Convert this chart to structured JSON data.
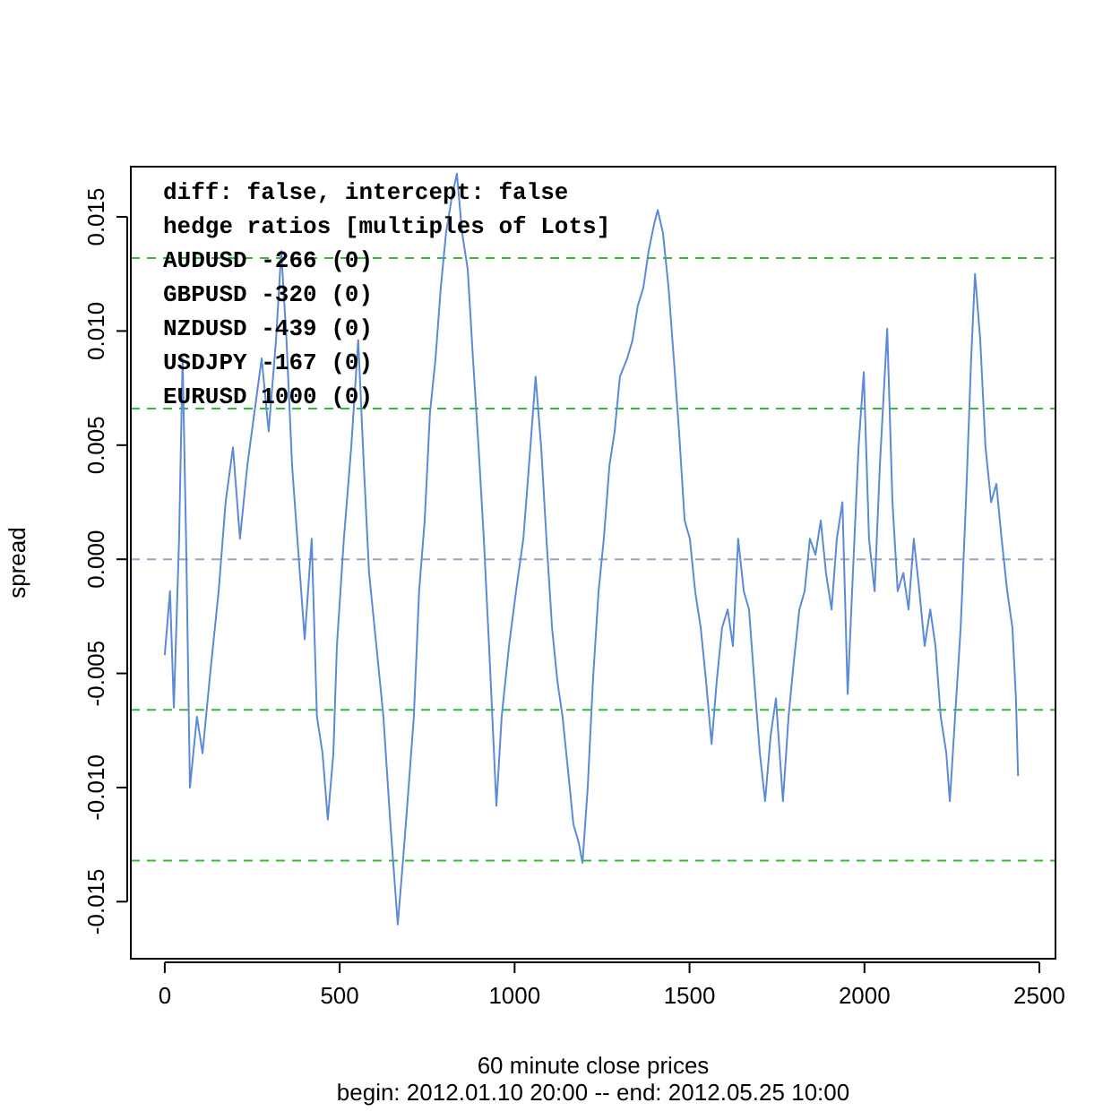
{
  "chart_data": {
    "type": "line",
    "xlabel": "60 minute close prices\nbegin: 2012.01.10 20:00 -- end: 2012.05.25 10:00",
    "ylabel": "spread",
    "annotations": [
      "diff: false, intercept: false",
      "hedge ratios [multiples of Lots]",
      "AUDUSD -266 (0)",
      "GBPUSD -320 (0)",
      "NZDUSD -439 (0)",
      "USDJPY -167 (0)",
      "EURUSD 1000 (0)"
    ],
    "xlim": [
      -97,
      2546
    ],
    "xticks": [
      0,
      500,
      1000,
      1500,
      2000,
      2500
    ],
    "ylim": [
      -0.0175,
      0.0172
    ],
    "yticks": [
      {
        "value": -0.015,
        "label": "-0.015"
      },
      {
        "value": -0.01,
        "label": "-0.010"
      },
      {
        "value": -0.005,
        "label": "-0.005"
      },
      {
        "value": 0,
        "label": "0.000"
      },
      {
        "value": 0.005,
        "label": "0.005"
      },
      {
        "value": 0.01,
        "label": "0.010"
      },
      {
        "value": 0.015,
        "label": "0.015"
      }
    ],
    "grid": false,
    "ref_lines": [
      {
        "axis": "y",
        "value": 0.0132,
        "color": "#33bb33",
        "line_style": "dashed"
      },
      {
        "axis": "y",
        "value": 0.0066,
        "color": "#33bb33",
        "line_style": "dashed"
      },
      {
        "axis": "y",
        "value": 0,
        "color": "#8fa8cc",
        "line_style": "dashed"
      },
      {
        "axis": "y",
        "value": -0.0066,
        "color": "#33bb33",
        "line_style": "dashed"
      },
      {
        "axis": "y",
        "value": -0.0132,
        "color": "#33bb33",
        "line_style": "dashed"
      }
    ],
    "series": [
      {
        "color": "#5b8bd6",
        "x": [
          0,
          15,
          26,
          41,
          51,
          61,
          72,
          92,
          108,
          128,
          154,
          174,
          195,
          215,
          236,
          256,
          277,
          297,
          318,
          333,
          348,
          364,
          379,
          400,
          420,
          435,
          451,
          466,
          482,
          492,
          512,
          533,
          553,
          569,
          584,
          605,
          625,
          645,
          666,
          681,
          697,
          712,
          727,
          743,
          758,
          774,
          789,
          804,
          820,
          835,
          850,
          866,
          881,
          897,
          912,
          927,
          948,
          963,
          984,
          1004,
          1025,
          1045,
          1060,
          1076,
          1091,
          1107,
          1122,
          1137,
          1153,
          1168,
          1183,
          1194,
          1209,
          1224,
          1240,
          1255,
          1271,
          1286,
          1301,
          1322,
          1337,
          1352,
          1368,
          1383,
          1399,
          1409,
          1424,
          1440,
          1455,
          1470,
          1486,
          1501,
          1516,
          1532,
          1547,
          1563,
          1578,
          1593,
          1609,
          1624,
          1639,
          1655,
          1670,
          1685,
          1701,
          1716,
          1732,
          1747,
          1767,
          1783,
          1798,
          1814,
          1829,
          1844,
          1860,
          1875,
          1890,
          1906,
          1921,
          1937,
          1952,
          1967,
          1983,
          1998,
          2013,
          2029,
          2044,
          2065,
          2080,
          2095,
          2111,
          2126,
          2141,
          2157,
          2172,
          2188,
          2203,
          2218,
          2234,
          2244,
          2259,
          2275,
          2290,
          2305,
          2316,
          2331,
          2346,
          2362,
          2377,
          2392,
          2408,
          2423,
          2433,
          2439
        ],
        "values": [
          -0.0042,
          -0.0014,
          -0.0065,
          0.0009,
          0.0088,
          0.0009,
          -0.01,
          -0.0069,
          -0.0085,
          -0.0053,
          -0.0014,
          0.0025,
          0.0049,
          0.0009,
          0.0041,
          0.0064,
          0.0088,
          0.0056,
          0.0096,
          0.0135,
          0.0096,
          0.0041,
          0.0009,
          -0.0035,
          0.0009,
          -0.0069,
          -0.0085,
          -0.0114,
          -0.0085,
          -0.0038,
          0.0009,
          0.0049,
          0.0096,
          0.0041,
          -0.0006,
          -0.0038,
          -0.0069,
          -0.0116,
          -0.016,
          -0.0132,
          -0.01,
          -0.0069,
          -0.0014,
          0.0017,
          0.0064,
          0.0088,
          0.0119,
          0.0143,
          0.0158,
          0.0169,
          0.0143,
          0.0127,
          0.0088,
          0.0049,
          0.0009,
          -0.0038,
          -0.0108,
          -0.0069,
          -0.0038,
          -0.0014,
          0.0009,
          0.0049,
          0.008,
          0.0049,
          0.0009,
          -0.003,
          -0.0053,
          -0.0069,
          -0.0093,
          -0.0116,
          -0.0124,
          -0.0133,
          -0.01,
          -0.0053,
          -0.0014,
          0.0009,
          0.0041,
          0.0056,
          0.008,
          0.0088,
          0.0096,
          0.0111,
          0.0119,
          0.0135,
          0.0147,
          0.0153,
          0.0143,
          0.0119,
          0.0088,
          0.0056,
          0.0017,
          0.0009,
          -0.0014,
          -0.003,
          -0.0053,
          -0.0081,
          -0.0053,
          -0.003,
          -0.0022,
          -0.0038,
          0.0009,
          -0.0014,
          -0.0022,
          -0.0053,
          -0.0085,
          -0.0106,
          -0.0077,
          -0.0061,
          -0.0106,
          -0.0069,
          -0.0045,
          -0.0022,
          -0.0014,
          0.0009,
          0.0002,
          0.0017,
          -0.0006,
          -0.0022,
          0.0009,
          0.0025,
          -0.0059,
          -0.0006,
          0.0049,
          0.0082,
          0.0009,
          -0.0014,
          0.0041,
          0.0101,
          0.0025,
          -0.0014,
          -0.0006,
          -0.0022,
          0.0009,
          -0.0014,
          -0.0038,
          -0.0022,
          -0.0038,
          -0.0069,
          -0.0085,
          -0.0106,
          -0.0069,
          -0.003,
          0.0025,
          0.0088,
          0.0125,
          0.0096,
          0.0049,
          0.0025,
          0.0033,
          0.0009,
          -0.0014,
          -0.003,
          -0.0061,
          -0.0095
        ]
      }
    ]
  }
}
